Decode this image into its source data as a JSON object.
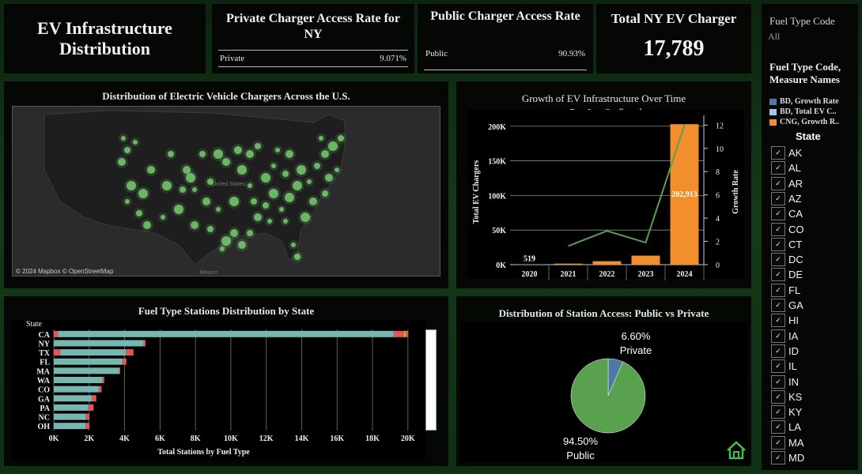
{
  "title": "EV Infrastructure Distribution",
  "kpis": {
    "private_title": "Private Charger Access Rate for NY",
    "private_label": "Private",
    "private_value": "9.071%",
    "public_title": "Public Charger Access Rate",
    "public_label": "Public",
    "public_value": "90.93%",
    "total_title": "Total NY EV Charger",
    "total_value": "17,789"
  },
  "map": {
    "title": "Distribution of Electric Vehicle Chargers Across the U.S.",
    "attribution": "© 2024 Mapbox © OpenStreetMap",
    "label_us": "United States",
    "label_mexico": "Mexico",
    "marker_color": "#7fe07a"
  },
  "growth_chart": {
    "title": "Growth of EV Infrastructure Over Time",
    "subtitle": "Date Last Confirmed"
  },
  "stations_chart": {
    "title": "Fuel Type Stations Distribution by State"
  },
  "access_chart": {
    "title": "Distribution of Station Access: Public vs Private"
  },
  "filters": {
    "fuel_type_title": "Fuel Type Code",
    "fuel_type_value": "All",
    "legend_title": "Fuel Type Code, Measure Names",
    "legend": [
      {
        "label": "BD, Growth Rate",
        "color": "#4e79a7"
      },
      {
        "label": "BD, Total EV C..",
        "color": "#a0cbe8"
      },
      {
        "label": "CNG, Growth R..",
        "color": "#f28e2b"
      }
    ],
    "state_header": "State",
    "states": [
      "AK",
      "AL",
      "AR",
      "AZ",
      "CA",
      "CO",
      "CT",
      "DC",
      "DE",
      "FL",
      "GA",
      "HI",
      "IA",
      "ID",
      "IL",
      "IN",
      "KS",
      "KY",
      "LA",
      "MA",
      "MD"
    ],
    "check_glyph": "✓"
  },
  "chart_data": [
    {
      "type": "bar",
      "title": "Growth of EV Infrastructure Over Time",
      "subtitle": "Date Last Confirmed",
      "categories": [
        "2020",
        "2021",
        "2022",
        "2023",
        "2024"
      ],
      "series": [
        {
          "name": "Total EV Chargers",
          "values": [
            519,
            1500,
            5000,
            13000,
            202913
          ],
          "color": "#f28e2b",
          "axis": "left"
        },
        {
          "name": "Growth Rate",
          "values": [
            null,
            1.6,
            2.9,
            1.9,
            12
          ],
          "color": "#59a14f",
          "type": "line",
          "axis": "right"
        }
      ],
      "data_labels": [
        {
          "category": "2020",
          "text": "519"
        },
        {
          "category": "2024",
          "text": "202,913"
        }
      ],
      "ylabel": "Total EV Chargers",
      "ylabel_right": "Growth Rate",
      "ylim": [
        0,
        210000
      ],
      "yticks": [
        0,
        50000,
        100000,
        150000,
        200000
      ],
      "ytick_labels": [
        "0K",
        "50K",
        "100K",
        "150K",
        "200K"
      ],
      "ylim_right": [
        0,
        12.5
      ],
      "yticks_right": [
        0,
        2,
        4,
        6,
        8,
        10,
        12
      ]
    },
    {
      "type": "bar",
      "orientation": "horizontal",
      "stacked": true,
      "title": "Fuel Type Stations Distribution by State",
      "ylabel": "State",
      "xlabel": "Total Stations by Fuel Type",
      "categories": [
        "CA",
        "NY",
        "TX",
        "FL",
        "MA",
        "WA",
        "CO",
        "GA",
        "PA",
        "NC",
        "OH"
      ],
      "series": [
        {
          "name": "red",
          "values": [
            250,
            0,
            380,
            0,
            0,
            0,
            0,
            0,
            0,
            0,
            0
          ],
          "color": "#e15759"
        },
        {
          "name": "teal",
          "values": [
            18950,
            5080,
            3700,
            3880,
            3700,
            2750,
            2550,
            2150,
            1950,
            1820,
            1800
          ],
          "color": "#76b7b2"
        },
        {
          "name": "other",
          "values": [
            550,
            100,
            420,
            220,
            50,
            100,
            150,
            250,
            300,
            180,
            200
          ],
          "color": "#e15759"
        }
      ],
      "top_segment": {
        "category": "CA",
        "values": [
          150,
          120
        ],
        "colors": [
          "#f28e2b",
          "#9c755f"
        ]
      },
      "xlim": [
        0,
        20500
      ],
      "xticks": [
        0,
        2000,
        4000,
        6000,
        8000,
        10000,
        12000,
        14000,
        16000,
        18000,
        20000
      ],
      "xtick_labels": [
        "0K",
        "2K",
        "4K",
        "6K",
        "8K",
        "10K",
        "12K",
        "14K",
        "16K",
        "18K",
        "20K"
      ]
    },
    {
      "type": "pie",
      "title": "Distribution of Station Access: Public vs Private",
      "labels": [
        "Private",
        "Public"
      ],
      "values": [
        6.6,
        94.5
      ],
      "display": [
        "6.60%",
        "94.50%"
      ],
      "colors": [
        "#4e79a7",
        "#59a14f"
      ]
    }
  ]
}
